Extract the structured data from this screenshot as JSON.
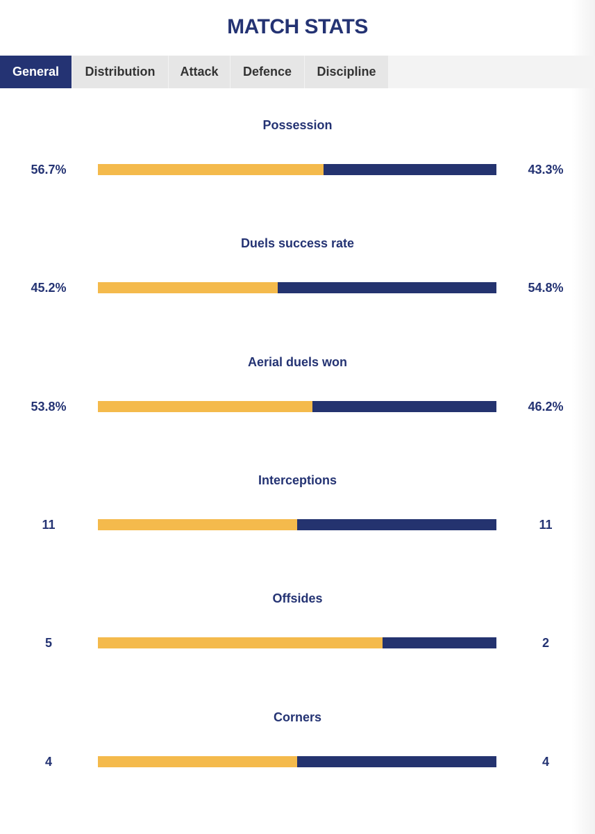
{
  "header": {
    "title": "MATCH STATS"
  },
  "tabs": [
    {
      "label": "General",
      "active": true
    },
    {
      "label": "Distribution",
      "active": false
    },
    {
      "label": "Attack",
      "active": false
    },
    {
      "label": "Defence",
      "active": false
    },
    {
      "label": "Discipline",
      "active": false
    }
  ],
  "colors": {
    "home": "#f4ba4c",
    "away": "#24336f",
    "accent": "#243373"
  },
  "stats": [
    {
      "label": "Possession",
      "home": "56.7%",
      "away": "43.3%",
      "home_share": 0.567
    },
    {
      "label": "Duels success rate",
      "home": "45.2%",
      "away": "54.8%",
      "home_share": 0.452
    },
    {
      "label": "Aerial duels won",
      "home": "53.8%",
      "away": "46.2%",
      "home_share": 0.538
    },
    {
      "label": "Interceptions",
      "home": "11",
      "away": "11",
      "home_share": 0.5
    },
    {
      "label": "Offsides",
      "home": "5",
      "away": "2",
      "home_share": 0.7143
    },
    {
      "label": "Corners",
      "home": "4",
      "away": "4",
      "home_share": 0.5
    }
  ]
}
